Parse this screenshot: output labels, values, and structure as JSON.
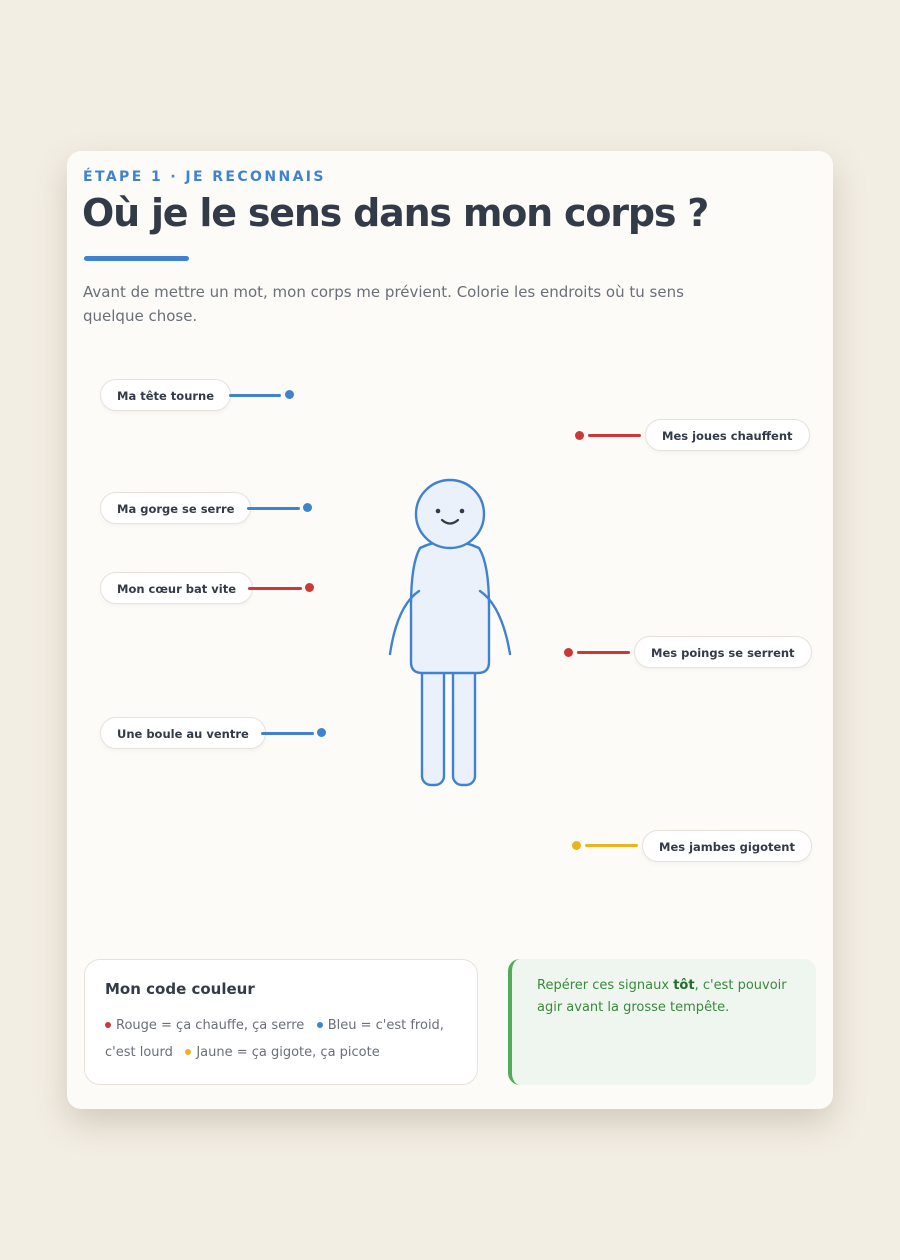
{
  "header": {
    "eyebrow": "ÉTAPE 1 · JE RECONNAIS",
    "title": "Où je le sens dans mon corps ?",
    "intro": "Avant de mettre un mot, mon corps me prévient. Colorie les endroits où tu sens quelque chose."
  },
  "colors": {
    "red": "#cc3838",
    "blue": "#3f83d0",
    "yellow": "#eab41e",
    "green": "#52ad5a"
  },
  "signals": [
    {
      "id": "tete",
      "label": "Ma tête tourne",
      "color": "blue"
    },
    {
      "id": "joues",
      "label": "Mes joues chauffent",
      "color": "red"
    },
    {
      "id": "gorge",
      "label": "Ma gorge se serre",
      "color": "blue"
    },
    {
      "id": "coeur",
      "label": "Mon cœur bat vite",
      "color": "red"
    },
    {
      "id": "poings",
      "label": "Mes poings se serrent",
      "color": "red"
    },
    {
      "id": "ventre",
      "label": "Une boule au ventre",
      "color": "blue"
    },
    {
      "id": "jambes",
      "label": "Mes jambes gigotent",
      "color": "yellow"
    }
  ],
  "legend": {
    "title": "Mon code couleur",
    "items": [
      {
        "color": "red",
        "text": "Rouge = ça chauffe, ça serre"
      },
      {
        "color": "blue",
        "text": "Bleu = c'est froid, c'est lourd"
      },
      {
        "color": "yellow",
        "text": "Jaune = ça gigote, ça picote"
      }
    ]
  },
  "tip": {
    "before": "Repérer ces signaux ",
    "strong": "tôt",
    "after": ", c'est pouvoir agir avant la grosse tempête."
  },
  "icons": [
    "body-figure-icon",
    "smile-icon"
  ]
}
